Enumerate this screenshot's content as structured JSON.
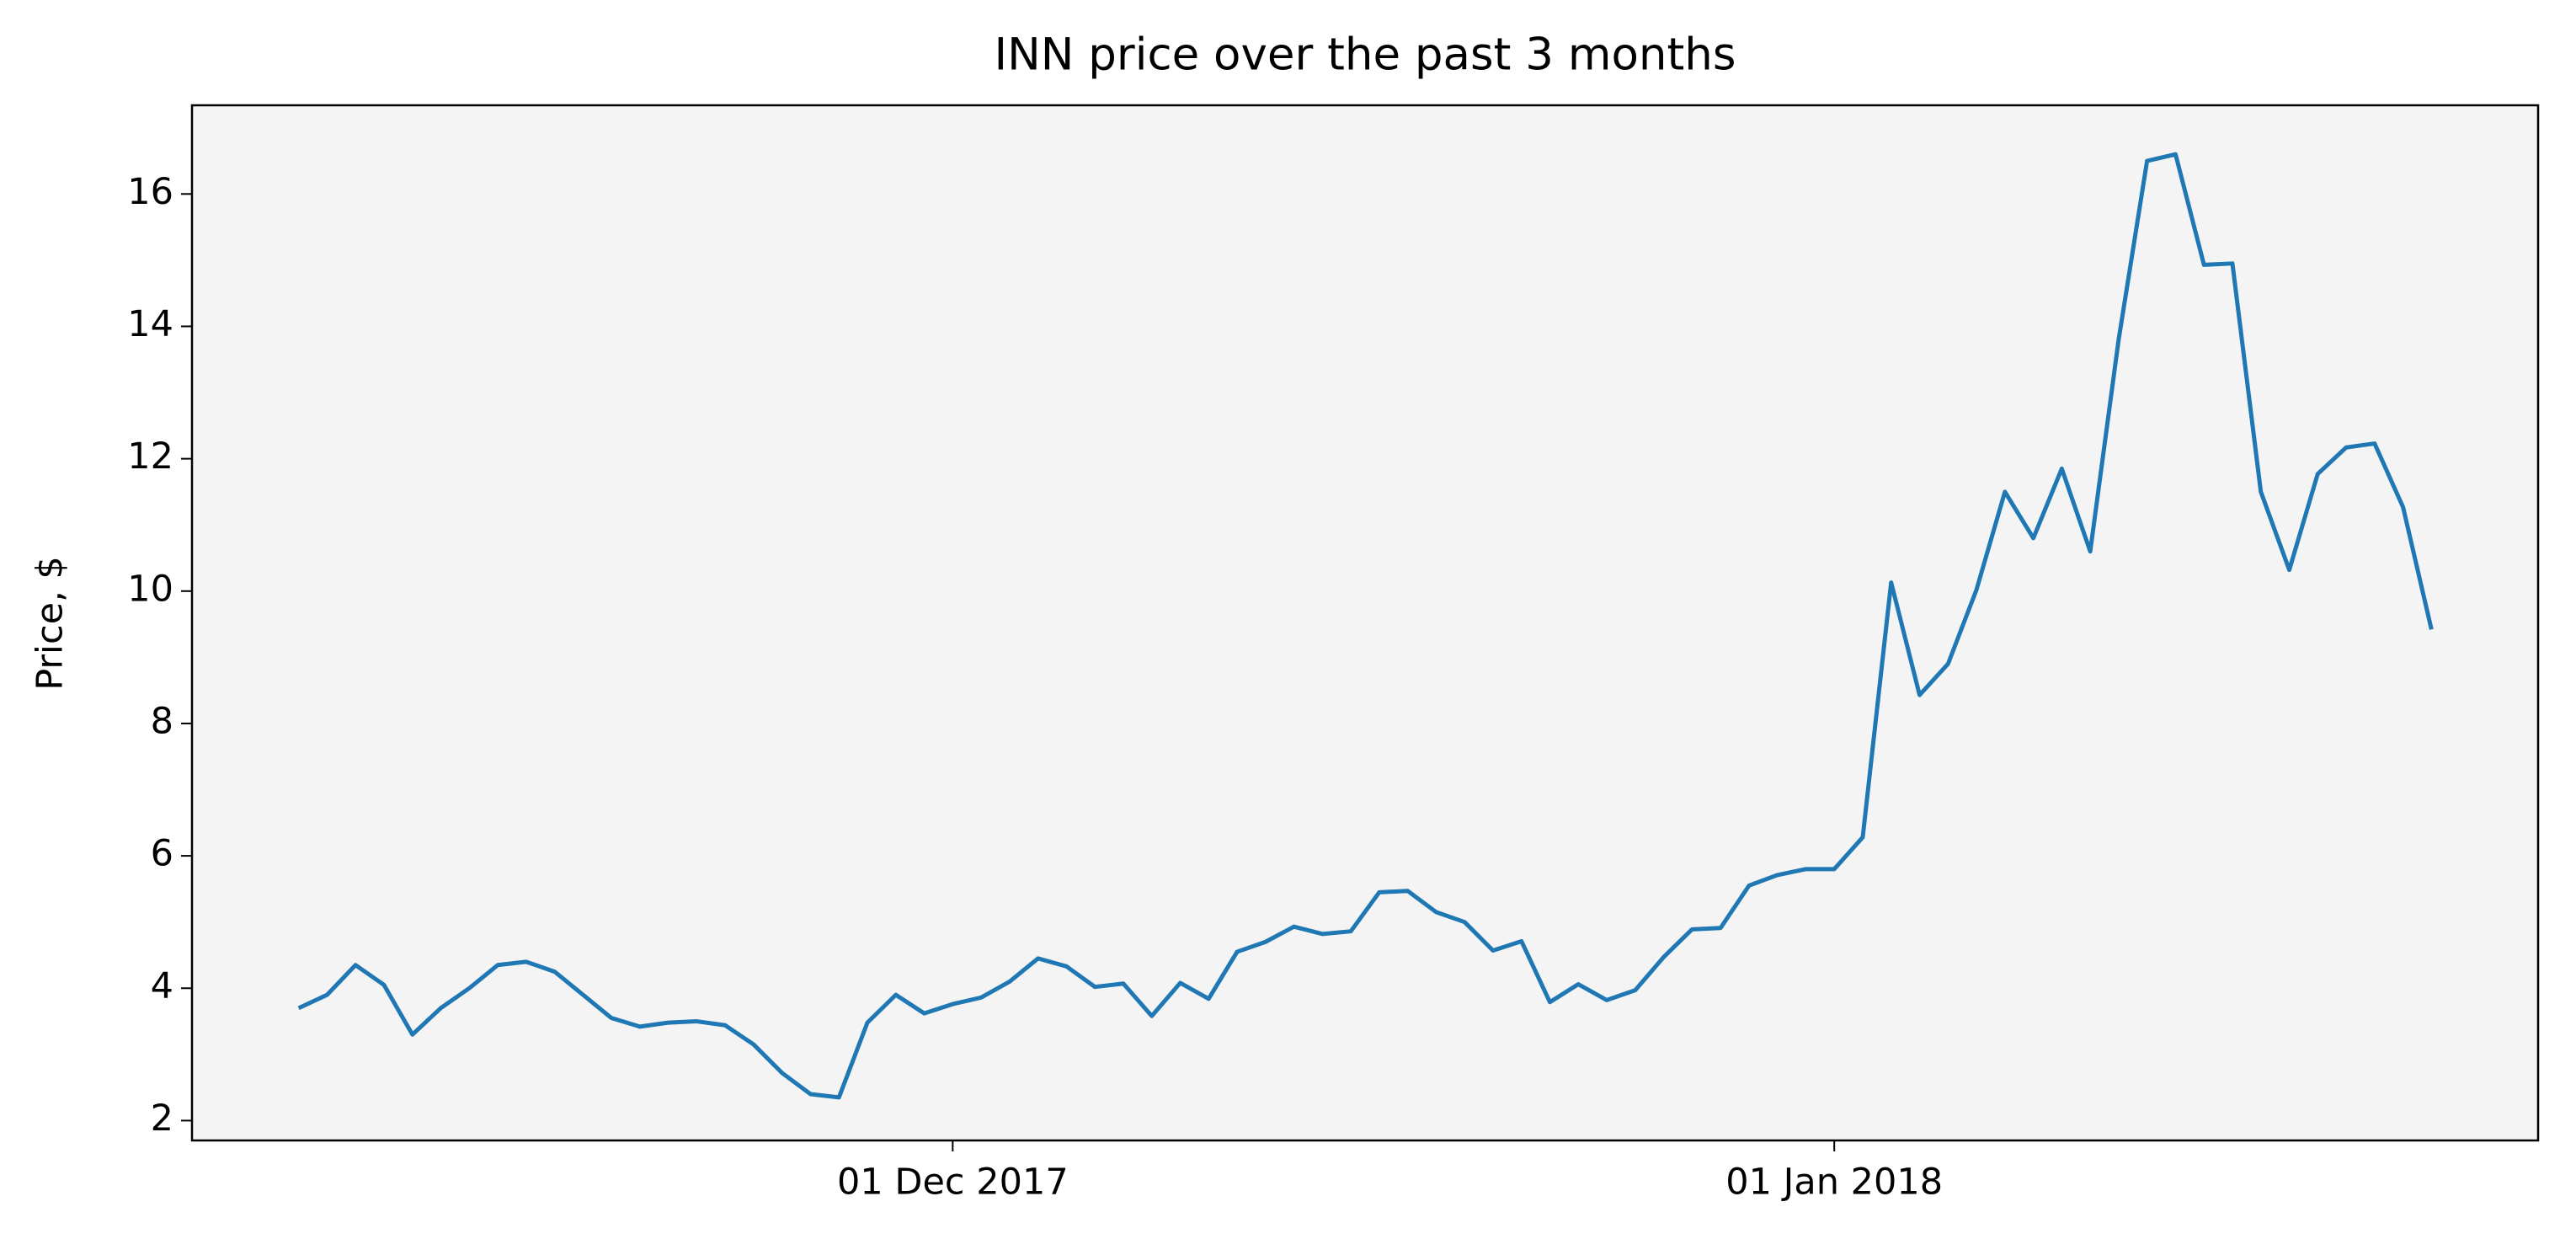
{
  "chart_data": {
    "type": "line",
    "title": "INN price over the past 3 months",
    "ylabel": "Price, $",
    "x": [
      "2017-11-08",
      "2017-11-09",
      "2017-11-10",
      "2017-11-11",
      "2017-11-12",
      "2017-11-13",
      "2017-11-14",
      "2017-11-15",
      "2017-11-16",
      "2017-11-17",
      "2017-11-18",
      "2017-11-19",
      "2017-11-20",
      "2017-11-21",
      "2017-11-22",
      "2017-11-23",
      "2017-11-24",
      "2017-11-25",
      "2017-11-26",
      "2017-11-27",
      "2017-11-28",
      "2017-11-29",
      "2017-11-30",
      "2017-12-01",
      "2017-12-02",
      "2017-12-03",
      "2017-12-04",
      "2017-12-05",
      "2017-12-06",
      "2017-12-07",
      "2017-12-08",
      "2017-12-09",
      "2017-12-10",
      "2017-12-11",
      "2017-12-12",
      "2017-12-13",
      "2017-12-14",
      "2017-12-15",
      "2017-12-16",
      "2017-12-17",
      "2017-12-18",
      "2017-12-19",
      "2017-12-20",
      "2017-12-21",
      "2017-12-22",
      "2017-12-23",
      "2017-12-24",
      "2017-12-25",
      "2017-12-26",
      "2017-12-27",
      "2017-12-28",
      "2017-12-29",
      "2017-12-30",
      "2017-12-31",
      "2018-01-01",
      "2018-01-02",
      "2018-01-03",
      "2018-01-04",
      "2018-01-05",
      "2018-01-06",
      "2018-01-07",
      "2018-01-08",
      "2018-01-09",
      "2018-01-10",
      "2018-01-11",
      "2018-01-12",
      "2018-01-13",
      "2018-01-14",
      "2018-01-15",
      "2018-01-16",
      "2018-01-17",
      "2018-01-18",
      "2018-01-19",
      "2018-01-20",
      "2018-01-21",
      "2018-01-22"
    ],
    "values": [
      3.7,
      3.9,
      4.35,
      4.05,
      3.3,
      3.7,
      4.0,
      4.35,
      4.4,
      4.25,
      3.9,
      3.55,
      3.42,
      3.48,
      3.5,
      3.44,
      3.15,
      2.72,
      2.4,
      2.35,
      3.48,
      3.9,
      3.62,
      3.76,
      3.86,
      4.1,
      4.45,
      4.33,
      4.02,
      4.07,
      3.58,
      4.08,
      3.84,
      4.55,
      4.7,
      4.93,
      4.82,
      4.86,
      5.45,
      5.47,
      5.15,
      5.0,
      4.57,
      4.71,
      3.79,
      4.06,
      3.82,
      3.97,
      4.47,
      4.89,
      4.91,
      5.55,
      5.71,
      5.8,
      5.8,
      6.28,
      10.13,
      8.43,
      8.9,
      10.02,
      11.5,
      10.8,
      11.85,
      10.6,
      13.8,
      16.5,
      16.6,
      14.93,
      14.95,
      11.5,
      10.32,
      11.77,
      12.17,
      12.23,
      11.27,
      9.42
    ],
    "color": "#1f77b4",
    "xlim": [
      "2017-11-04T06:00:00Z",
      "2018-01-25T18:00:00Z"
    ],
    "xticks": [
      {
        "value": "2017-12-01",
        "label": "01 Dec 2017"
      },
      {
        "value": "2018-01-01",
        "label": "01 Jan 2018"
      }
    ],
    "ylim": [
      1.7,
      17.34
    ],
    "yticks": [
      2,
      4,
      6,
      8,
      10,
      12,
      14,
      16
    ],
    "background": "#f4f4f4"
  }
}
